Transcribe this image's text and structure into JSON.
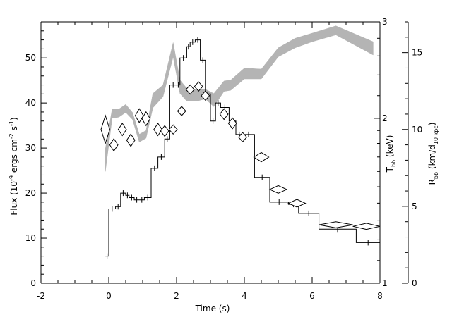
{
  "chart_data": {
    "type": "line",
    "xlabel": "Time (s)",
    "xlim": [
      -2,
      8
    ],
    "x_ticks": [
      -2,
      0,
      2,
      4,
      6,
      8
    ],
    "left_axis": {
      "label_main": "Flux (10",
      "label_exp1": "-9",
      "label_mid": " ergs cm",
      "label_exp2": "-2",
      "label_s": " s",
      "label_exp3": "-1",
      "label_end": ")",
      "ylim": [
        0,
        58
      ],
      "ticks": [
        0,
        10,
        20,
        30,
        40,
        50
      ]
    },
    "temp_axis": {
      "label_main": "T",
      "label_sub": "bb",
      "label_unit": " (keV)",
      "scale": "log",
      "ylim": [
        1,
        3
      ],
      "ticks": [
        1,
        2,
        3
      ]
    },
    "radius_axis": {
      "label_main": "R",
      "label_sub1": "bb",
      "label_mid": " (km/d",
      "label_sub2": "10 kpc",
      "label_end": ")",
      "ylim": [
        0,
        17
      ],
      "ticks": [
        0,
        5,
        10,
        15
      ]
    },
    "series": [
      {
        "type": "step",
        "unit": "flux",
        "color": "#000000",
        "bins": [
          [
            -0.1,
            0.0,
            6
          ],
          [
            0.0,
            0.2,
            16.5
          ],
          [
            0.2,
            0.35,
            17
          ],
          [
            0.35,
            0.5,
            20
          ],
          [
            0.5,
            0.6,
            19.5
          ],
          [
            0.6,
            0.75,
            19
          ],
          [
            0.75,
            0.9,
            18.5
          ],
          [
            0.9,
            1.05,
            18.5
          ],
          [
            1.05,
            1.25,
            19
          ],
          [
            1.25,
            1.45,
            25.5
          ],
          [
            1.45,
            1.65,
            28
          ],
          [
            1.65,
            1.8,
            32
          ],
          [
            1.8,
            2.0,
            44
          ],
          [
            2.0,
            2.1,
            44
          ],
          [
            2.1,
            2.3,
            50
          ],
          [
            2.3,
            2.4,
            52.5
          ],
          [
            2.4,
            2.55,
            53.5
          ],
          [
            2.55,
            2.7,
            54
          ],
          [
            2.7,
            2.85,
            49.5
          ],
          [
            2.85,
            3.0,
            42
          ],
          [
            3.0,
            3.15,
            36
          ],
          [
            3.15,
            3.3,
            40
          ],
          [
            3.3,
            3.55,
            39
          ],
          [
            3.55,
            3.75,
            36
          ],
          [
            3.75,
            3.95,
            33
          ],
          [
            3.95,
            4.3,
            33
          ],
          [
            4.3,
            4.75,
            23.5
          ],
          [
            4.75,
            5.3,
            18
          ],
          [
            5.3,
            5.6,
            17.5
          ],
          [
            5.6,
            6.2,
            15.5
          ],
          [
            6.2,
            7.3,
            12
          ],
          [
            7.3,
            8.0,
            9
          ]
        ]
      },
      {
        "type": "band",
        "unit": "temperature_keV",
        "color": "#b4b4b4",
        "x": [
          -0.1,
          0.1,
          0.3,
          0.5,
          0.7,
          0.9,
          1.1,
          1.3,
          1.6,
          1.9,
          2.1,
          2.3,
          2.6,
          2.85,
          3.1,
          3.4,
          3.6,
          4.0,
          4.5,
          5.0,
          5.5,
          6.0,
          6.7,
          7.8
        ],
        "lower": [
          1.6,
          2.0,
          2.01,
          2.05,
          1.99,
          1.81,
          1.84,
          2.09,
          2.19,
          2.59,
          2.22,
          2.15,
          2.15,
          2.17,
          2.1,
          2.24,
          2.25,
          2.36,
          2.36,
          2.59,
          2.69,
          2.76,
          2.84,
          2.61
        ],
        "upper": [
          1.76,
          2.08,
          2.08,
          2.12,
          2.05,
          1.87,
          1.9,
          2.22,
          2.3,
          2.75,
          2.35,
          2.27,
          2.26,
          2.26,
          2.22,
          2.34,
          2.35,
          2.47,
          2.46,
          2.69,
          2.8,
          2.86,
          2.95,
          2.76
        ]
      },
      {
        "type": "diamonds",
        "unit": "radius",
        "color": "#000000",
        "points": [
          {
            "x": -0.1,
            "y": 10.0,
            "dx": 0.13,
            "dy": 0.9
          },
          {
            "x": 0.15,
            "y": 9.0,
            "dx": 0.12,
            "dy": 0.4
          },
          {
            "x": 0.4,
            "y": 10.0,
            "dx": 0.12,
            "dy": 0.4
          },
          {
            "x": 0.65,
            "y": 9.3,
            "dx": 0.12,
            "dy": 0.4
          },
          {
            "x": 0.9,
            "y": 10.9,
            "dx": 0.12,
            "dy": 0.45
          },
          {
            "x": 1.1,
            "y": 10.7,
            "dx": 0.12,
            "dy": 0.45
          },
          {
            "x": 1.45,
            "y": 10.0,
            "dx": 0.12,
            "dy": 0.4
          },
          {
            "x": 1.65,
            "y": 9.9,
            "dx": 0.12,
            "dy": 0.35
          },
          {
            "x": 1.9,
            "y": 10.0,
            "dx": 0.12,
            "dy": 0.3
          },
          {
            "x": 2.15,
            "y": 11.2,
            "dx": 0.12,
            "dy": 0.3
          },
          {
            "x": 2.4,
            "y": 12.6,
            "dx": 0.12,
            "dy": 0.3
          },
          {
            "x": 2.65,
            "y": 12.8,
            "dx": 0.12,
            "dy": 0.3
          },
          {
            "x": 2.85,
            "y": 12.2,
            "dx": 0.12,
            "dy": 0.3
          },
          {
            "x": 3.4,
            "y": 11.0,
            "dx": 0.12,
            "dy": 0.35
          },
          {
            "x": 3.65,
            "y": 10.4,
            "dx": 0.12,
            "dy": 0.35
          },
          {
            "x": 3.95,
            "y": 9.5,
            "dx": 0.12,
            "dy": 0.3
          },
          {
            "x": 4.5,
            "y": 8.2,
            "dx": 0.22,
            "dy": 0.3
          },
          {
            "x": 5.0,
            "y": 6.1,
            "dx": 0.25,
            "dy": 0.25
          },
          {
            "x": 5.55,
            "y": 5.2,
            "dx": 0.25,
            "dy": 0.25
          },
          {
            "x": 6.7,
            "y": 3.8,
            "dx": 0.5,
            "dy": 0.2
          },
          {
            "x": 7.6,
            "y": 3.7,
            "dx": 0.4,
            "dy": 0.2
          }
        ]
      }
    ]
  }
}
